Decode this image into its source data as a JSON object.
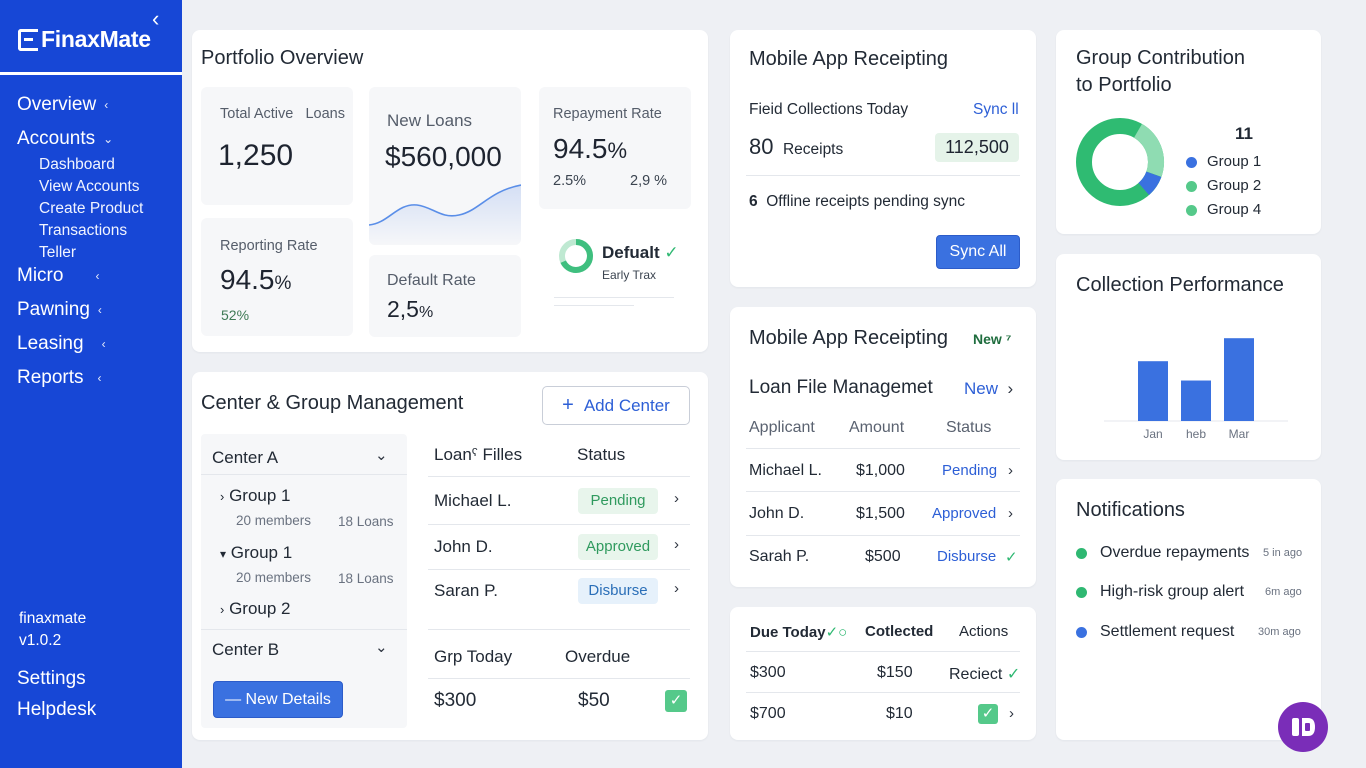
{
  "app": {
    "name": "FinaxMate",
    "version_name": "finaxmate",
    "version": "v1.0.2"
  },
  "sidebar": {
    "items": [
      {
        "label": "Overview"
      },
      {
        "label": "Accounts"
      },
      {
        "label": "Micro"
      },
      {
        "label": "Pawning"
      },
      {
        "label": "Leasing"
      },
      {
        "label": "Reports"
      }
    ],
    "accounts_sub": [
      "Dashboard",
      "View Accounts",
      "Create Product",
      "Transactions",
      "Teller"
    ],
    "settings": "Settings",
    "helpdesk": "Helpdesk"
  },
  "portfolio": {
    "title": "Portfolio Overview",
    "total_active_label": "Total Active",
    "total_active_label2": "Loans",
    "total_active_value": "1,250",
    "new_loans_label": "New Loans",
    "new_loans_value": "$560,000",
    "repayment_label": "Repayment Rate",
    "repayment_value": "94.5",
    "repayment_unit": "%",
    "repayment_sub1": "2.5%",
    "repayment_sub2": "2,9 %",
    "reporting_label": "Reporting Rate",
    "reporting_value": "94.5",
    "reporting_unit": "%",
    "reporting_sub": "52%",
    "default_label": "Default Rate",
    "default_value": "2,5",
    "default_unit": "%",
    "defualt_title": "Defualt",
    "defualt_sub": "Early Trax"
  },
  "center_group": {
    "title": "Center & Group Management",
    "add_center": "Add Center",
    "center_a": "Center A",
    "groups": [
      {
        "name": "Group 1",
        "members": "20 members",
        "loans": "18 Loans",
        "arrow": "›"
      },
      {
        "name": "Group 1",
        "members": "20 members",
        "loans": "18 Loans",
        "arrow": "▾"
      }
    ],
    "group2": "Group 2",
    "center_b": "Center B",
    "new_details": "— New Details",
    "table_headers": [
      "Loanˁ Filles",
      "Status"
    ],
    "rows": [
      {
        "name": "Michael L.",
        "status": "Pending"
      },
      {
        "name": "John D.",
        "status": "Approved"
      },
      {
        "name": "Saran P.",
        "status": "Disburse"
      }
    ],
    "bottom_headers": [
      "Grp Today",
      "Overdue"
    ],
    "bottom_row": {
      "today": "$300",
      "overdue": "$50"
    }
  },
  "mobile1": {
    "title": "Mobile App Receipting",
    "field_label": "Fieid Collections Today",
    "sync_link": "Sync ll",
    "receipts_count": "80",
    "receipts_label": "Receipts",
    "amount": "112,500",
    "offline_count": "6",
    "offline_label": "Offline receipts pending sync",
    "sync_all": "Sync All"
  },
  "mobile2": {
    "title": "Mobile App Receipting",
    "badge": "New ⁷",
    "loan_file_title": "Loan File Managemet",
    "new_link": "New",
    "headers": [
      "Applicant",
      "Amount",
      "Status"
    ],
    "rows": [
      {
        "name": "Michael L.",
        "amount": "$1,000",
        "status": "Pending",
        "end": "›"
      },
      {
        "name": "John D.",
        "amount": "$1,500",
        "status": "Approved",
        "end": "›"
      },
      {
        "name": "Sarah P.",
        "amount": "$500",
        "status": "Disburse",
        "end": "✓"
      }
    ]
  },
  "due": {
    "headers": [
      "Due Today",
      "Cotlected",
      "Actions"
    ],
    "check_suffix": "✓○",
    "rows": [
      {
        "due": "$300",
        "collected": "$150",
        "action": "Reciect"
      },
      {
        "due": "$700",
        "collected": "$10",
        "action": ""
      }
    ]
  },
  "group_contribution": {
    "title_line1": "Group Contribution",
    "title_line2": "to Portfolio",
    "legend_head": "11",
    "legend": [
      {
        "name": "Group 1",
        "color": "#3a71e0"
      },
      {
        "name": "Group 2",
        "color": "#55c98a"
      },
      {
        "name": "Group 4",
        "color": "#55c98a"
      }
    ]
  },
  "chart_data": {
    "type": "bar",
    "title": "Collection Performance",
    "categories": [
      "Jan",
      "heb",
      "Mar"
    ],
    "values": [
      65,
      44,
      90
    ],
    "ylim": [
      0,
      100
    ],
    "color": "#3a71e0"
  },
  "notifications": {
    "title": "Notifications",
    "items": [
      {
        "text": "Overdue repayments",
        "time": "5 in ago",
        "color": "#2fb872"
      },
      {
        "text": "High-risk group alert",
        "time": "6m ago",
        "color": "#2fb872"
      },
      {
        "text": "Settlement request",
        "time": "30m ago",
        "color": "#3a71e0"
      }
    ]
  },
  "colors": {
    "sidebar": "#1747d6",
    "accent": "#3a71e0",
    "success": "#55c98a"
  }
}
